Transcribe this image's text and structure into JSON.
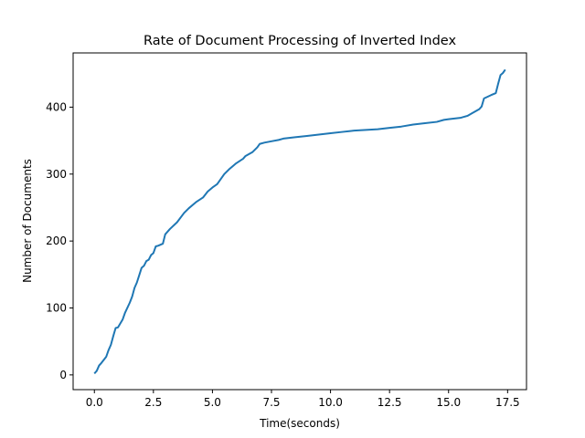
{
  "chart_data": {
    "type": "line",
    "title": "Rate of Document Processing of Inverted Index",
    "xlabel": "Time(seconds)",
    "ylabel": "Number of Documents",
    "xlim": [
      -0.9,
      18.3
    ],
    "ylim": [
      -22,
      481
    ],
    "xticks": [
      0.0,
      2.5,
      5.0,
      7.5,
      10.0,
      12.5,
      15.0,
      17.5
    ],
    "xtick_labels": [
      "0.0",
      "2.5",
      "5.0",
      "7.5",
      "10.0",
      "12.5",
      "15.0",
      "17.5"
    ],
    "yticks": [
      0,
      100,
      200,
      300,
      400
    ],
    "ytick_labels": [
      "0",
      "100",
      "200",
      "300",
      "400"
    ],
    "grid": false,
    "color": "#1f77b4",
    "series": [
      {
        "x": [
          0.0,
          0.1,
          0.2,
          0.3,
          0.5,
          0.6,
          0.7,
          0.8,
          0.9,
          1.0,
          1.2,
          1.3,
          1.5,
          1.6,
          1.7,
          1.8,
          1.9,
          2.0,
          2.1,
          2.2,
          2.3,
          2.4,
          2.5,
          2.6,
          2.7,
          2.9,
          3.0,
          3.2,
          3.5,
          3.8,
          4.0,
          4.3,
          4.6,
          4.8,
          5.0,
          5.2,
          5.5,
          5.7,
          6.0,
          6.3,
          6.4,
          6.7,
          6.9,
          7.0,
          7.2,
          7.5,
          7.8,
          8.0,
          8.5,
          9.0,
          9.5,
          10.0,
          10.5,
          11.0,
          11.5,
          12.0,
          12.5,
          13.0,
          13.5,
          14.0,
          14.5,
          14.8,
          15.0,
          15.5,
          15.8,
          16.0,
          16.3,
          16.4,
          16.5,
          16.8,
          17.0,
          17.1,
          17.2,
          17.3,
          17.4
        ],
        "y": [
          2,
          6,
          14,
          18,
          27,
          37,
          45,
          58,
          70,
          71,
          83,
          93,
          108,
          117,
          130,
          138,
          149,
          160,
          163,
          170,
          172,
          179,
          182,
          192,
          193,
          196,
          210,
          218,
          228,
          242,
          249,
          258,
          265,
          274,
          280,
          285,
          300,
          307,
          316,
          323,
          327,
          333,
          340,
          345,
          347,
          349,
          351,
          353,
          355,
          357,
          359,
          361,
          363,
          365,
          366,
          367,
          369,
          371,
          374,
          376,
          378,
          381,
          382,
          384,
          387,
          391,
          397,
          401,
          413,
          418,
          421,
          435,
          448,
          451,
          456
        ]
      }
    ]
  }
}
